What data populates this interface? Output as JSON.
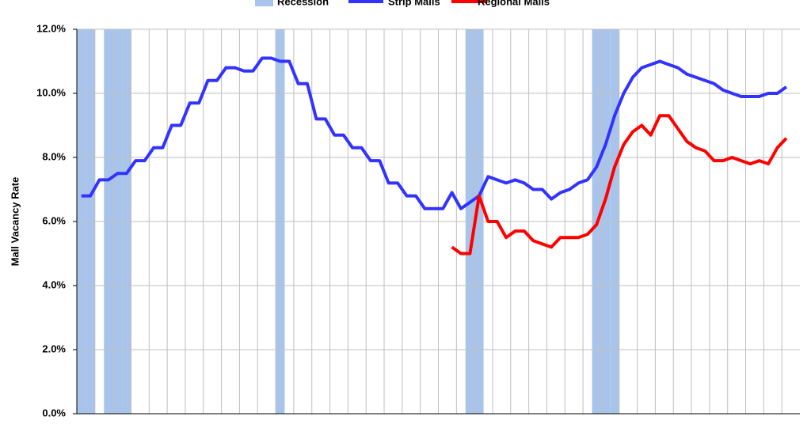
{
  "chart_data": {
    "type": "line",
    "ylabel": "Mall Vacancy Rate",
    "categories": [
      null,
      null,
      null,
      null,
      null,
      null,
      null,
      null,
      null,
      null,
      null,
      null,
      null,
      null,
      null,
      null,
      null,
      null,
      null,
      null,
      null,
      null,
      null,
      null,
      null,
      null,
      null,
      null,
      null,
      null,
      null,
      null,
      null,
      null,
      null,
      null,
      null,
      null,
      null,
      null,
      null,
      null,
      null,
      null,
      null,
      null,
      null,
      null,
      null,
      null,
      null,
      null,
      null,
      null,
      null,
      null,
      null,
      null,
      null,
      null,
      null,
      null,
      null,
      null,
      null,
      null,
      null,
      null,
      null,
      null,
      null,
      null,
      null,
      null,
      null,
      null,
      null,
      null,
      null,
      null
    ],
    "series": [
      {
        "name": "Recession",
        "type": "bar",
        "color": "#a9c4ea",
        "values": [
          12,
          12,
          0,
          12,
          12,
          12,
          0,
          0,
          0,
          0,
          0,
          0,
          0,
          0,
          0,
          0,
          0,
          0,
          0,
          0,
          0,
          0,
          12,
          0,
          0,
          0,
          0,
          0,
          0,
          0,
          0,
          0,
          0,
          0,
          0,
          0,
          0,
          0,
          0,
          0,
          0,
          0,
          0,
          12,
          12,
          0,
          0,
          0,
          0,
          0,
          0,
          0,
          0,
          0,
          0,
          0,
          0,
          12,
          12,
          12,
          0,
          0,
          0,
          0,
          0,
          0,
          0,
          0,
          0,
          0,
          0,
          0,
          0,
          0,
          0,
          0,
          0,
          0,
          0,
          0
        ]
      },
      {
        "name": "Strip Malls",
        "type": "line",
        "color": "#3333ff",
        "values": [
          6.8,
          6.8,
          7.3,
          7.3,
          7.5,
          7.5,
          7.9,
          7.9,
          8.3,
          8.3,
          9.0,
          9.0,
          9.7,
          9.7,
          10.4,
          10.4,
          10.8,
          10.8,
          10.7,
          10.7,
          11.1,
          11.1,
          11.0,
          11.0,
          10.3,
          10.3,
          9.2,
          9.2,
          8.7,
          8.7,
          8.3,
          8.3,
          7.9,
          7.9,
          7.2,
          7.2,
          6.8,
          6.8,
          6.4,
          6.4,
          6.4,
          6.9,
          6.4,
          6.6,
          6.8,
          7.4,
          7.3,
          7.2,
          7.3,
          7.2,
          7.0,
          7.0,
          6.7,
          6.9,
          7.0,
          7.2,
          7.3,
          7.7,
          8.4,
          9.3,
          10.0,
          10.5,
          10.8,
          10.9,
          11.0,
          10.9,
          10.8,
          10.6,
          10.5,
          10.4,
          10.3,
          10.1,
          10.0,
          9.9,
          9.9,
          9.9,
          10.0,
          10.0,
          10.2,
          null
        ]
      },
      {
        "name": "Regional Malls",
        "type": "line",
        "color": "#ff0000",
        "values": [
          null,
          null,
          null,
          null,
          null,
          null,
          null,
          null,
          null,
          null,
          null,
          null,
          null,
          null,
          null,
          null,
          null,
          null,
          null,
          null,
          null,
          null,
          null,
          null,
          null,
          null,
          null,
          null,
          null,
          null,
          null,
          null,
          null,
          null,
          null,
          null,
          null,
          null,
          null,
          null,
          null,
          5.2,
          5.0,
          5.0,
          6.8,
          6.0,
          6.0,
          5.5,
          5.7,
          5.7,
          5.4,
          5.3,
          5.2,
          5.5,
          5.5,
          5.5,
          5.6,
          5.9,
          6.7,
          7.7,
          8.4,
          8.8,
          9.0,
          8.7,
          9.3,
          9.3,
          8.9,
          8.5,
          8.3,
          8.2,
          7.9,
          7.9,
          8.0,
          7.9,
          7.8,
          7.9,
          7.8,
          8.3,
          8.6,
          null
        ]
      }
    ],
    "ylim": [
      0,
      12
    ],
    "yticks": [
      {
        "value": 0,
        "label": "0.0%"
      },
      {
        "value": 2,
        "label": "2.0%"
      },
      {
        "value": 4,
        "label": "4.0%"
      },
      {
        "value": 6,
        "label": "6.0%"
      },
      {
        "value": 8,
        "label": "8.0%"
      },
      {
        "value": 10,
        "label": "10.0%"
      },
      {
        "value": 12,
        "label": "12.0%"
      }
    ],
    "grid": true,
    "legend": "top"
  }
}
